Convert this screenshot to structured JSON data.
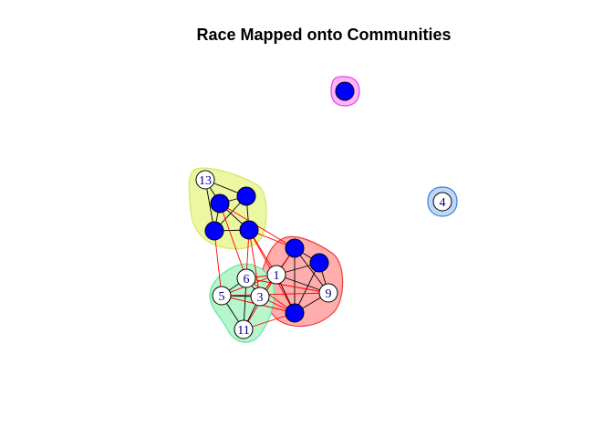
{
  "title": "Race Mapped onto Communities",
  "colors": {
    "node_fill_black": "#0000FF",
    "node_fill_white": "#FFFFFF",
    "label_color": "#00008B",
    "edge_within": "#000000",
    "edge_between": "#FF0000"
  },
  "communities": [
    {
      "name": "community-magenta",
      "fill": "#FFB3FF",
      "stroke": "#E040E0",
      "members": [
        "n14"
      ]
    },
    {
      "name": "community-blue",
      "fill": "#BFD6F5",
      "stroke": "#3C7FD8",
      "members": [
        "n4"
      ]
    },
    {
      "name": "community-yellow",
      "fill": "#ECF7A2",
      "stroke": "#D7E66A",
      "members": [
        "n13",
        "n8",
        "n7",
        "n15",
        "n10"
      ]
    },
    {
      "name": "community-red",
      "fill": "#FFADAD",
      "stroke": "#F23A3A",
      "members": [
        "n12",
        "n16",
        "n1",
        "n9",
        "n2"
      ]
    },
    {
      "name": "community-green",
      "fill": "#B7F5CC",
      "stroke": "#5EE89A",
      "members": [
        "n6",
        "n5",
        "n3",
        "n11"
      ]
    }
  ],
  "nodes": [
    {
      "id": "n14",
      "label": "",
      "race": "black"
    },
    {
      "id": "n4",
      "label": "4",
      "race": "white"
    },
    {
      "id": "n13",
      "label": "13",
      "race": "white"
    },
    {
      "id": "n8",
      "label": "",
      "race": "black"
    },
    {
      "id": "n7",
      "label": "",
      "race": "black"
    },
    {
      "id": "n15",
      "label": "",
      "race": "black"
    },
    {
      "id": "n10",
      "label": "",
      "race": "black"
    },
    {
      "id": "n12",
      "label": "",
      "race": "black"
    },
    {
      "id": "n16",
      "label": "",
      "race": "black"
    },
    {
      "id": "n1",
      "label": "1",
      "race": "white"
    },
    {
      "id": "n9",
      "label": "9",
      "race": "white"
    },
    {
      "id": "n2",
      "label": "",
      "race": "black"
    },
    {
      "id": "n6",
      "label": "6",
      "race": "white"
    },
    {
      "id": "n5",
      "label": "5",
      "race": "white"
    },
    {
      "id": "n3",
      "label": "3",
      "race": "white"
    },
    {
      "id": "n11",
      "label": "11",
      "race": "white"
    }
  ],
  "edges": [
    [
      "n13",
      "n8"
    ],
    [
      "n13",
      "n7"
    ],
    [
      "n13",
      "n15"
    ],
    [
      "n8",
      "n7"
    ],
    [
      "n8",
      "n15"
    ],
    [
      "n8",
      "n10"
    ],
    [
      "n7",
      "n15"
    ],
    [
      "n7",
      "n10"
    ],
    [
      "n15",
      "n10"
    ],
    [
      "n12",
      "n16"
    ],
    [
      "n12",
      "n1"
    ],
    [
      "n12",
      "n9"
    ],
    [
      "n12",
      "n2"
    ],
    [
      "n16",
      "n1"
    ],
    [
      "n16",
      "n9"
    ],
    [
      "n16",
      "n2"
    ],
    [
      "n1",
      "n9"
    ],
    [
      "n1",
      "n2"
    ],
    [
      "n9",
      "n2"
    ],
    [
      "n6",
      "n5"
    ],
    [
      "n6",
      "n3"
    ],
    [
      "n6",
      "n11"
    ],
    [
      "n5",
      "n3"
    ],
    [
      "n5",
      "n11"
    ],
    [
      "n3",
      "n11"
    ],
    [
      "n15",
      "n5"
    ],
    [
      "n7",
      "n12"
    ],
    [
      "n10",
      "n12"
    ],
    [
      "n10",
      "n1"
    ],
    [
      "n10",
      "n6"
    ],
    [
      "n7",
      "n6"
    ],
    [
      "n10",
      "n3"
    ],
    [
      "n10",
      "n2"
    ],
    [
      "n6",
      "n1"
    ],
    [
      "n5",
      "n1"
    ],
    [
      "n3",
      "n1"
    ],
    [
      "n3",
      "n12"
    ],
    [
      "n6",
      "n9"
    ],
    [
      "n5",
      "n2"
    ],
    [
      "n3",
      "n2"
    ],
    [
      "n11",
      "n2"
    ],
    [
      "n11",
      "n1"
    ],
    [
      "n5",
      "n9"
    ],
    [
      "n6",
      "n2"
    ]
  ]
}
